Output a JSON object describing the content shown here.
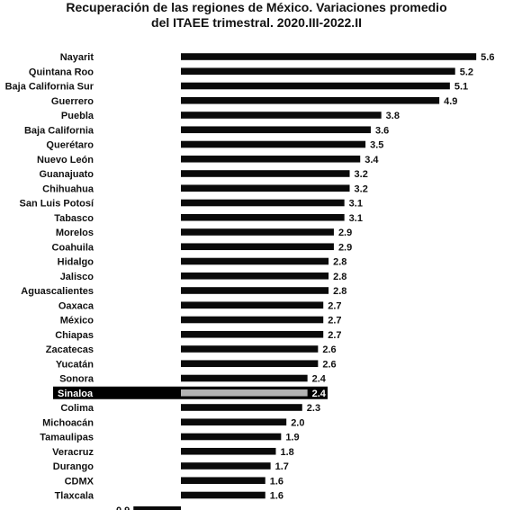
{
  "chart_data": {
    "type": "bar",
    "orientation": "horizontal",
    "title": [
      "Recuperación de las regiones de México. Variaciones promedio",
      "del ITAEE trimestral. 2020.III-2022.II"
    ],
    "categories": [
      "Nayarit",
      "Quintana Roo",
      "Baja California Sur",
      "Guerrero",
      "Puebla",
      "Baja California",
      "Querétaro",
      "Nuevo León",
      "Guanajuato",
      "Chihuahua",
      "San Luis Potosí",
      "Tabasco",
      "Morelos",
      "Coahuila",
      "Hidalgo",
      "Jalisco",
      "Aguascalientes",
      "Oaxaca",
      "México",
      "Chiapas",
      "Zacatecas",
      "Yucatán",
      "Sonora",
      "Sinaloa",
      "Colima",
      "Michoacán",
      "Tamaulipas",
      "Veracruz",
      "Durango",
      "CDMX",
      "Tlaxcala",
      ""
    ],
    "values": [
      5.6,
      5.2,
      5.1,
      4.9,
      3.8,
      3.6,
      3.5,
      3.4,
      3.2,
      3.2,
      3.1,
      3.1,
      2.9,
      2.9,
      2.8,
      2.8,
      2.8,
      2.7,
      2.7,
      2.7,
      2.6,
      2.6,
      2.4,
      2.4,
      2.3,
      2.0,
      1.9,
      1.8,
      1.7,
      1.6,
      1.6,
      -0.9
    ],
    "value_labels": [
      "5.6",
      "5.2",
      "5.1",
      "4.9",
      "3.8",
      "3.6",
      "3.5",
      "3.4",
      "3.2",
      "3.2",
      "3.1",
      "3.1",
      "2.9",
      "2.9",
      "2.8",
      "2.8",
      "2.8",
      "2.7",
      "2.7",
      "2.7",
      "2.6",
      "2.6",
      "2.4",
      "2.4",
      "2.3",
      "2.0",
      "1.9",
      "1.8",
      "1.7",
      "1.6",
      "1.6",
      "-0.9"
    ],
    "highlight": "Sinaloa",
    "colors": {
      "bar": "#0a0a0a",
      "highlight_bar": "#b3b3b3",
      "highlight_label_bg": "#000000",
      "highlight_label_text": "#ffffff"
    },
    "xlim": [
      -0.9,
      5.6
    ],
    "grid": false,
    "legend": "none"
  }
}
